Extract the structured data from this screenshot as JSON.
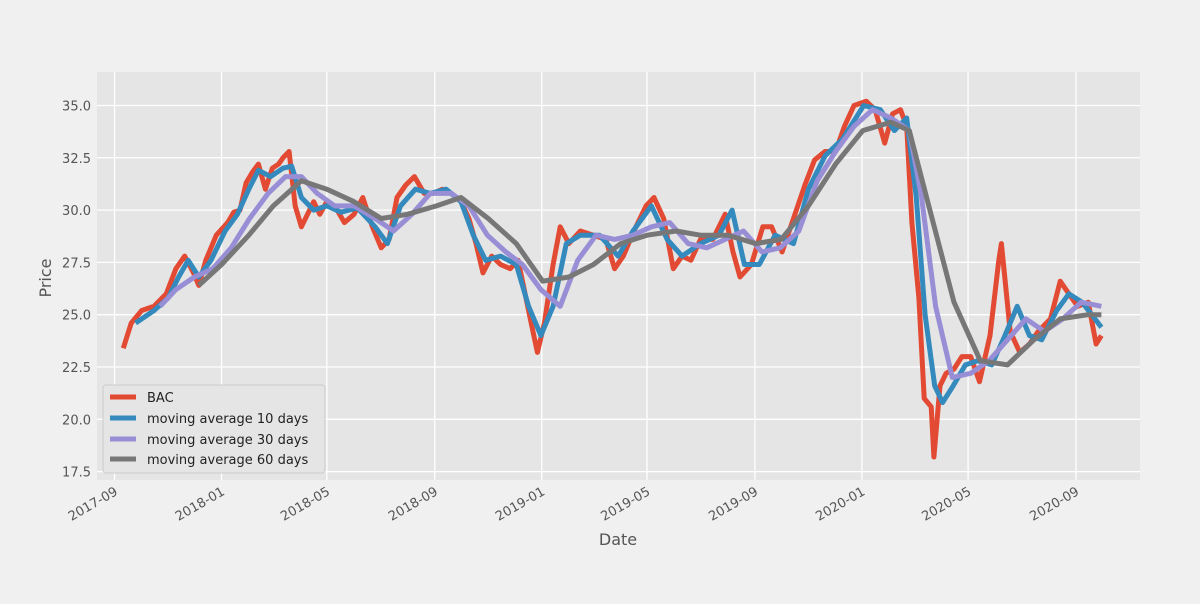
{
  "chart_data": {
    "type": "line",
    "xlabel": "Date",
    "ylabel": "Price",
    "x_ticks": [
      "2017-09",
      "2018-01",
      "2018-05",
      "2018-09",
      "2019-01",
      "2019-05",
      "2019-09",
      "2020-01",
      "2020-05",
      "2020-09"
    ],
    "y_ticks": [
      "17.5",
      "20.0",
      "22.5",
      "25.0",
      "27.5",
      "30.0",
      "32.5",
      "35.0"
    ],
    "xlim": [
      "2017-08-12",
      "2020-11-13"
    ],
    "ylim": [
      17.1,
      36.6
    ],
    "grid": true,
    "legend_position": "lower-left",
    "colors": {
      "BAC": "#E24A33",
      "ma10": "#348ABD",
      "ma30": "#988ED5",
      "ma60": "#777777"
    },
    "series": [
      {
        "name": "BAC",
        "points": [
          [
            "2017-09-11",
            23.4
          ],
          [
            "2017-09-20",
            24.6
          ],
          [
            "2017-10-02",
            25.2
          ],
          [
            "2017-10-16",
            25.4
          ],
          [
            "2017-10-30",
            26.0
          ],
          [
            "2017-11-10",
            27.2
          ],
          [
            "2017-11-20",
            27.8
          ],
          [
            "2017-11-30",
            27.0
          ],
          [
            "2017-12-06",
            26.4
          ],
          [
            "2017-12-14",
            27.6
          ],
          [
            "2017-12-26",
            28.8
          ],
          [
            "2018-01-08",
            29.4
          ],
          [
            "2018-01-15",
            29.9
          ],
          [
            "2018-01-22",
            30.0
          ],
          [
            "2018-01-29",
            31.3
          ],
          [
            "2018-02-05",
            31.8
          ],
          [
            "2018-02-12",
            32.2
          ],
          [
            "2018-02-20",
            31.0
          ],
          [
            "2018-02-28",
            32.0
          ],
          [
            "2018-03-07",
            32.2
          ],
          [
            "2018-03-12",
            32.5
          ],
          [
            "2018-03-19",
            32.8
          ],
          [
            "2018-03-26",
            30.2
          ],
          [
            "2018-04-02",
            29.2
          ],
          [
            "2018-04-09",
            29.8
          ],
          [
            "2018-04-16",
            30.4
          ],
          [
            "2018-04-23",
            29.8
          ],
          [
            "2018-05-01",
            30.4
          ],
          [
            "2018-05-10",
            30.2
          ],
          [
            "2018-05-21",
            29.4
          ],
          [
            "2018-06-01",
            29.8
          ],
          [
            "2018-06-11",
            30.6
          ],
          [
            "2018-06-22",
            29.2
          ],
          [
            "2018-07-02",
            28.2
          ],
          [
            "2018-07-11",
            28.6
          ],
          [
            "2018-07-20",
            30.6
          ],
          [
            "2018-07-30",
            31.2
          ],
          [
            "2018-08-09",
            31.6
          ],
          [
            "2018-08-20",
            30.8
          ],
          [
            "2018-08-30",
            30.8
          ],
          [
            "2018-09-10",
            31.0
          ],
          [
            "2018-09-20",
            30.8
          ],
          [
            "2018-10-01",
            30.4
          ],
          [
            "2018-10-10",
            29.6
          ],
          [
            "2018-10-18",
            28.4
          ],
          [
            "2018-10-26",
            27.0
          ],
          [
            "2018-11-05",
            27.8
          ],
          [
            "2018-11-15",
            27.4
          ],
          [
            "2018-11-26",
            27.2
          ],
          [
            "2018-12-05",
            27.6
          ],
          [
            "2018-12-13",
            26.0
          ],
          [
            "2018-12-20",
            24.6
          ],
          [
            "2018-12-27",
            23.2
          ],
          [
            "2019-01-04",
            24.6
          ],
          [
            "2019-01-14",
            27.4
          ],
          [
            "2019-01-22",
            29.2
          ],
          [
            "2019-02-01",
            28.4
          ],
          [
            "2019-02-14",
            29.0
          ],
          [
            "2019-03-01",
            28.8
          ],
          [
            "2019-03-15",
            28.6
          ],
          [
            "2019-03-25",
            27.2
          ],
          [
            "2019-04-04",
            27.8
          ],
          [
            "2019-04-16",
            29.0
          ],
          [
            "2019-04-30",
            30.2
          ],
          [
            "2019-05-09",
            30.6
          ],
          [
            "2019-05-20",
            29.6
          ],
          [
            "2019-05-31",
            27.2
          ],
          [
            "2019-06-10",
            27.8
          ],
          [
            "2019-06-20",
            27.6
          ],
          [
            "2019-07-01",
            28.6
          ],
          [
            "2019-07-15",
            28.6
          ],
          [
            "2019-07-29",
            29.8
          ],
          [
            "2019-08-07",
            28.0
          ],
          [
            "2019-08-15",
            26.8
          ],
          [
            "2019-08-28",
            27.4
          ],
          [
            "2019-09-10",
            29.2
          ],
          [
            "2019-09-20",
            29.2
          ],
          [
            "2019-10-02",
            28.0
          ],
          [
            "2019-10-15",
            29.6
          ],
          [
            "2019-10-28",
            31.2
          ],
          [
            "2019-11-08",
            32.4
          ],
          [
            "2019-11-20",
            32.8
          ],
          [
            "2019-12-02",
            32.8
          ],
          [
            "2019-12-12",
            34.0
          ],
          [
            "2019-12-23",
            35.0
          ],
          [
            "2020-01-06",
            35.2
          ],
          [
            "2020-01-16",
            34.8
          ],
          [
            "2020-01-27",
            33.2
          ],
          [
            "2020-02-05",
            34.6
          ],
          [
            "2020-02-14",
            34.8
          ],
          [
            "2020-02-21",
            34.0
          ],
          [
            "2020-02-27",
            29.4
          ],
          [
            "2020-03-06",
            25.8
          ],
          [
            "2020-03-12",
            21.0
          ],
          [
            "2020-03-20",
            20.6
          ],
          [
            "2020-03-23",
            18.2
          ],
          [
            "2020-03-30",
            21.6
          ],
          [
            "2020-04-06",
            22.2
          ],
          [
            "2020-04-15",
            22.4
          ],
          [
            "2020-04-24",
            23.0
          ],
          [
            "2020-05-04",
            23.0
          ],
          [
            "2020-05-14",
            21.8
          ],
          [
            "2020-05-26",
            24.0
          ],
          [
            "2020-06-05",
            27.6
          ],
          [
            "2020-06-08",
            28.4
          ],
          [
            "2020-06-18",
            24.2
          ],
          [
            "2020-06-29",
            23.2
          ],
          [
            "2020-07-10",
            23.6
          ],
          [
            "2020-07-20",
            24.2
          ],
          [
            "2020-08-03",
            24.8
          ],
          [
            "2020-08-14",
            26.6
          ],
          [
            "2020-08-24",
            26.0
          ],
          [
            "2020-09-03",
            25.4
          ],
          [
            "2020-09-15",
            25.6
          ],
          [
            "2020-09-24",
            23.6
          ],
          [
            "2020-09-30",
            24.0
          ]
        ]
      },
      {
        "name": "moving average 10 days",
        "points": [
          [
            "2017-09-25",
            24.6
          ],
          [
            "2017-10-16",
            25.2
          ],
          [
            "2017-11-01",
            25.8
          ],
          [
            "2017-11-13",
            26.8
          ],
          [
            "2017-11-24",
            27.6
          ],
          [
            "2017-12-06",
            26.8
          ],
          [
            "2017-12-20",
            27.6
          ],
          [
            "2018-01-05",
            29.0
          ],
          [
            "2018-01-19",
            29.8
          ],
          [
            "2018-02-01",
            31.0
          ],
          [
            "2018-02-12",
            31.9
          ],
          [
            "2018-02-26",
            31.6
          ],
          [
            "2018-03-12",
            32.0
          ],
          [
            "2018-03-22",
            32.1
          ],
          [
            "2018-04-02",
            30.6
          ],
          [
            "2018-04-16",
            30.0
          ],
          [
            "2018-05-01",
            30.2
          ],
          [
            "2018-05-17",
            29.9
          ],
          [
            "2018-06-05",
            30.1
          ],
          [
            "2018-06-25",
            29.2
          ],
          [
            "2018-07-09",
            28.4
          ],
          [
            "2018-07-24",
            30.2
          ],
          [
            "2018-08-10",
            31.0
          ],
          [
            "2018-08-27",
            30.8
          ],
          [
            "2018-09-14",
            31.0
          ],
          [
            "2018-10-01",
            30.4
          ],
          [
            "2018-10-15",
            28.8
          ],
          [
            "2018-10-29",
            27.6
          ],
          [
            "2018-11-15",
            27.8
          ],
          [
            "2018-12-03",
            27.4
          ],
          [
            "2018-12-17",
            25.4
          ],
          [
            "2018-12-31",
            24.0
          ],
          [
            "2019-01-14",
            25.4
          ],
          [
            "2019-01-29",
            28.4
          ],
          [
            "2019-02-14",
            28.8
          ],
          [
            "2019-03-08",
            28.8
          ],
          [
            "2019-03-29",
            27.8
          ],
          [
            "2019-04-15",
            29.0
          ],
          [
            "2019-05-06",
            30.2
          ],
          [
            "2019-05-24",
            28.6
          ],
          [
            "2019-06-10",
            27.8
          ],
          [
            "2019-07-01",
            28.4
          ],
          [
            "2019-07-22",
            28.8
          ],
          [
            "2019-08-06",
            30.0
          ],
          [
            "2019-08-20",
            27.4
          ],
          [
            "2019-09-06",
            27.4
          ],
          [
            "2019-09-24",
            28.8
          ],
          [
            "2019-10-15",
            28.4
          ],
          [
            "2019-11-01",
            31.0
          ],
          [
            "2019-11-20",
            32.6
          ],
          [
            "2019-12-10",
            33.4
          ],
          [
            "2020-01-03",
            35.0
          ],
          [
            "2020-01-22",
            34.8
          ],
          [
            "2020-02-07",
            33.8
          ],
          [
            "2020-02-21",
            34.4
          ],
          [
            "2020-03-03",
            30.6
          ],
          [
            "2020-03-13",
            25.0
          ],
          [
            "2020-03-24",
            21.6
          ],
          [
            "2020-04-02",
            20.8
          ],
          [
            "2020-04-14",
            21.6
          ],
          [
            "2020-04-28",
            22.6
          ],
          [
            "2020-05-12",
            22.8
          ],
          [
            "2020-05-28",
            22.6
          ],
          [
            "2020-06-12",
            24.0
          ],
          [
            "2020-06-26",
            25.4
          ],
          [
            "2020-07-10",
            24.0
          ],
          [
            "2020-07-24",
            23.8
          ],
          [
            "2020-08-10",
            25.2
          ],
          [
            "2020-08-24",
            26.0
          ],
          [
            "2020-09-08",
            25.6
          ],
          [
            "2020-09-30",
            24.4
          ]
        ]
      },
      {
        "name": "moving average 30 days",
        "points": [
          [
            "2017-10-23",
            25.4
          ],
          [
            "2017-11-10",
            26.2
          ],
          [
            "2017-12-01",
            26.8
          ],
          [
            "2017-12-22",
            27.2
          ],
          [
            "2018-01-12",
            28.2
          ],
          [
            "2018-02-02",
            29.6
          ],
          [
            "2018-02-23",
            30.8
          ],
          [
            "2018-03-15",
            31.6
          ],
          [
            "2018-04-02",
            31.6
          ],
          [
            "2018-04-20",
            30.8
          ],
          [
            "2018-05-10",
            30.2
          ],
          [
            "2018-06-01",
            30.2
          ],
          [
            "2018-06-25",
            29.6
          ],
          [
            "2018-07-16",
            29.0
          ],
          [
            "2018-08-06",
            29.8
          ],
          [
            "2018-08-27",
            30.8
          ],
          [
            "2018-09-20",
            30.8
          ],
          [
            "2018-10-10",
            30.2
          ],
          [
            "2018-10-31",
            28.8
          ],
          [
            "2018-11-21",
            28.0
          ],
          [
            "2018-12-10",
            27.4
          ],
          [
            "2018-12-31",
            26.2
          ],
          [
            "2019-01-22",
            25.4
          ],
          [
            "2019-02-11",
            27.6
          ],
          [
            "2019-03-04",
            28.8
          ],
          [
            "2019-03-25",
            28.6
          ],
          [
            "2019-04-15",
            28.8
          ],
          [
            "2019-05-06",
            29.2
          ],
          [
            "2019-05-27",
            29.4
          ],
          [
            "2019-06-17",
            28.4
          ],
          [
            "2019-07-08",
            28.2
          ],
          [
            "2019-07-29",
            28.6
          ],
          [
            "2019-08-19",
            29.0
          ],
          [
            "2019-09-09",
            28.0
          ],
          [
            "2019-09-30",
            28.2
          ],
          [
            "2019-10-21",
            29.0
          ],
          [
            "2019-11-11",
            31.4
          ],
          [
            "2019-12-02",
            32.8
          ],
          [
            "2019-12-23",
            34.0
          ],
          [
            "2020-01-13",
            34.8
          ],
          [
            "2020-02-03",
            34.4
          ],
          [
            "2020-02-24",
            33.8
          ],
          [
            "2020-03-09",
            30.6
          ],
          [
            "2020-03-25",
            25.4
          ],
          [
            "2020-04-13",
            22.0
          ],
          [
            "2020-05-04",
            22.2
          ],
          [
            "2020-05-25",
            22.8
          ],
          [
            "2020-06-15",
            23.8
          ],
          [
            "2020-07-06",
            24.8
          ],
          [
            "2020-07-27",
            24.2
          ],
          [
            "2020-08-17",
            24.8
          ],
          [
            "2020-09-07",
            25.6
          ],
          [
            "2020-09-30",
            25.4
          ]
        ]
      },
      {
        "name": "moving average 60 days",
        "points": [
          [
            "2017-12-06",
            26.4
          ],
          [
            "2018-01-01",
            27.4
          ],
          [
            "2018-02-01",
            28.8
          ],
          [
            "2018-03-01",
            30.2
          ],
          [
            "2018-04-02",
            31.4
          ],
          [
            "2018-05-01",
            31.0
          ],
          [
            "2018-06-01",
            30.4
          ],
          [
            "2018-07-02",
            29.6
          ],
          [
            "2018-08-01",
            29.8
          ],
          [
            "2018-09-03",
            30.2
          ],
          [
            "2018-10-01",
            30.6
          ],
          [
            "2018-11-01",
            29.6
          ],
          [
            "2018-12-03",
            28.4
          ],
          [
            "2019-01-02",
            26.6
          ],
          [
            "2019-02-01",
            26.8
          ],
          [
            "2019-03-01",
            27.4
          ],
          [
            "2019-04-01",
            28.4
          ],
          [
            "2019-05-01",
            28.8
          ],
          [
            "2019-06-03",
            29.0
          ],
          [
            "2019-07-01",
            28.8
          ],
          [
            "2019-08-01",
            28.8
          ],
          [
            "2019-09-02",
            28.4
          ],
          [
            "2019-10-01",
            28.6
          ],
          [
            "2019-11-01",
            30.2
          ],
          [
            "2019-12-02",
            32.2
          ],
          [
            "2020-01-02",
            33.8
          ],
          [
            "2020-02-03",
            34.2
          ],
          [
            "2020-02-24",
            33.8
          ],
          [
            "2020-03-16",
            30.4
          ],
          [
            "2020-04-15",
            25.6
          ],
          [
            "2020-05-15",
            22.8
          ],
          [
            "2020-06-15",
            22.6
          ],
          [
            "2020-07-15",
            23.8
          ],
          [
            "2020-08-14",
            24.8
          ],
          [
            "2020-09-15",
            25.0
          ],
          [
            "2020-09-30",
            25.0
          ]
        ]
      }
    ]
  }
}
